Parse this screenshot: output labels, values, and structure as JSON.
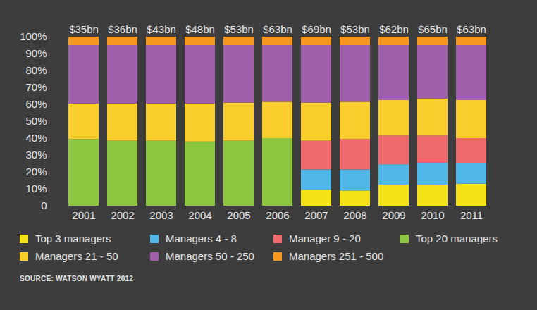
{
  "chart_data": {
    "type": "bar",
    "stacked": true,
    "categories": [
      "2001",
      "2002",
      "2003",
      "2004",
      "2005",
      "2006",
      "2007",
      "2008",
      "2009",
      "2010",
      "2011"
    ],
    "total_labels": [
      "$35bn",
      "$36bn",
      "$43bn",
      "$48bn",
      "$53bn",
      "$63bn",
      "$69bn",
      "$53bn",
      "$62bn",
      "$65bn",
      "$63bn"
    ],
    "series": [
      {
        "name": "Top 3 managers",
        "color": "#f5e31a",
        "values": [
          null,
          null,
          null,
          null,
          null,
          null,
          9.5,
          9,
          12.5,
          12.5,
          13
        ]
      },
      {
        "name": "Managers 4 - 8",
        "color": "#4fb8e8",
        "values": [
          null,
          null,
          null,
          null,
          null,
          null,
          12,
          12.5,
          12,
          13,
          12
        ]
      },
      {
        "name": "Manager 9 - 20",
        "color": "#ef6a6a",
        "values": [
          null,
          null,
          null,
          null,
          null,
          null,
          17,
          18,
          17,
          16,
          15
        ]
      },
      {
        "name": "Top 20 managers",
        "color": "#8cc63f",
        "values": [
          39.5,
          38.5,
          38.5,
          38,
          38.5,
          40,
          null,
          null,
          null,
          null,
          null
        ]
      },
      {
        "name": "Managers 21 - 50",
        "color": "#f9cd2c",
        "values": [
          21,
          22,
          22,
          22.5,
          22.5,
          21.5,
          22.5,
          22,
          21,
          22,
          22.5
        ]
      },
      {
        "name": "Managers 50 - 250",
        "color": "#a05fab",
        "values": [
          34.5,
          34.5,
          34.5,
          34.5,
          34,
          33.5,
          34,
          33.5,
          32.5,
          31.5,
          32.5
        ]
      },
      {
        "name": "Managers 251 - 500",
        "color": "#f5961e",
        "values": [
          5,
          5,
          5,
          5,
          5,
          5,
          5,
          5,
          5,
          5,
          5
        ]
      }
    ],
    "ylim": [
      0,
      100
    ],
    "yticks": [
      0,
      {
        "value": 10,
        "label": "10%"
      },
      {
        "value": 20,
        "label": "20%"
      },
      {
        "value": 30,
        "label": "30%"
      },
      {
        "value": 40,
        "label": "40%"
      },
      {
        "value": 50,
        "label": "50%"
      },
      {
        "value": 60,
        "label": "60%"
      },
      {
        "value": 70,
        "label": "70%"
      },
      {
        "value": 80,
        "label": "80%"
      },
      {
        "value": 90,
        "label": "90%"
      },
      {
        "value": 100,
        "label": "100%"
      }
    ],
    "grid": false,
    "legend": "bottom",
    "source": "SOURCE: WATSON WYATT 2012"
  }
}
